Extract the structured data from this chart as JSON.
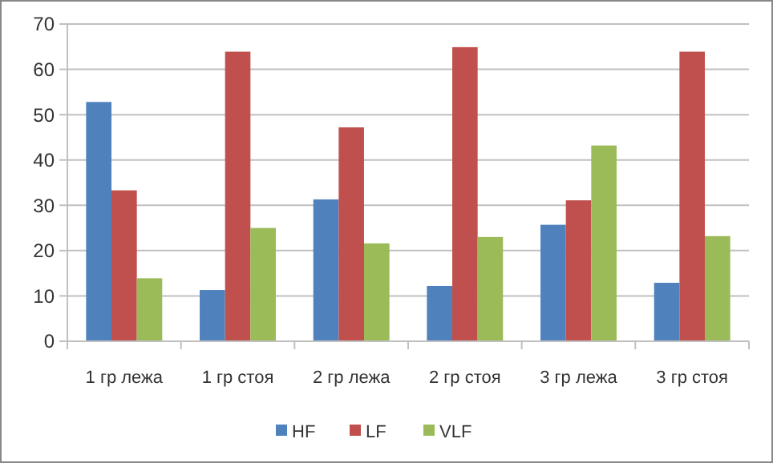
{
  "chart_data": {
    "type": "bar",
    "categories": [
      "1 гр лежа",
      "1 гр стоя",
      "2 гр лежа",
      "2 гр стоя",
      "3 гр лежа",
      "3 гр стоя"
    ],
    "series": [
      {
        "name": "HF",
        "color": "#4f81bd",
        "values": [
          52.8,
          11.3,
          31.3,
          12.2,
          25.7,
          12.9
        ]
      },
      {
        "name": "LF",
        "color": "#c0504d",
        "values": [
          33.3,
          63.9,
          47.2,
          64.9,
          31.1,
          63.9
        ]
      },
      {
        "name": "VLF",
        "color": "#9bbb59",
        "values": [
          13.9,
          25.0,
          21.6,
          23.0,
          43.2,
          23.2
        ]
      }
    ],
    "ylim": [
      0,
      70
    ],
    "yticks": [
      0,
      10,
      20,
      30,
      40,
      50,
      60,
      70
    ],
    "grid": "y",
    "legend": "bottom"
  }
}
